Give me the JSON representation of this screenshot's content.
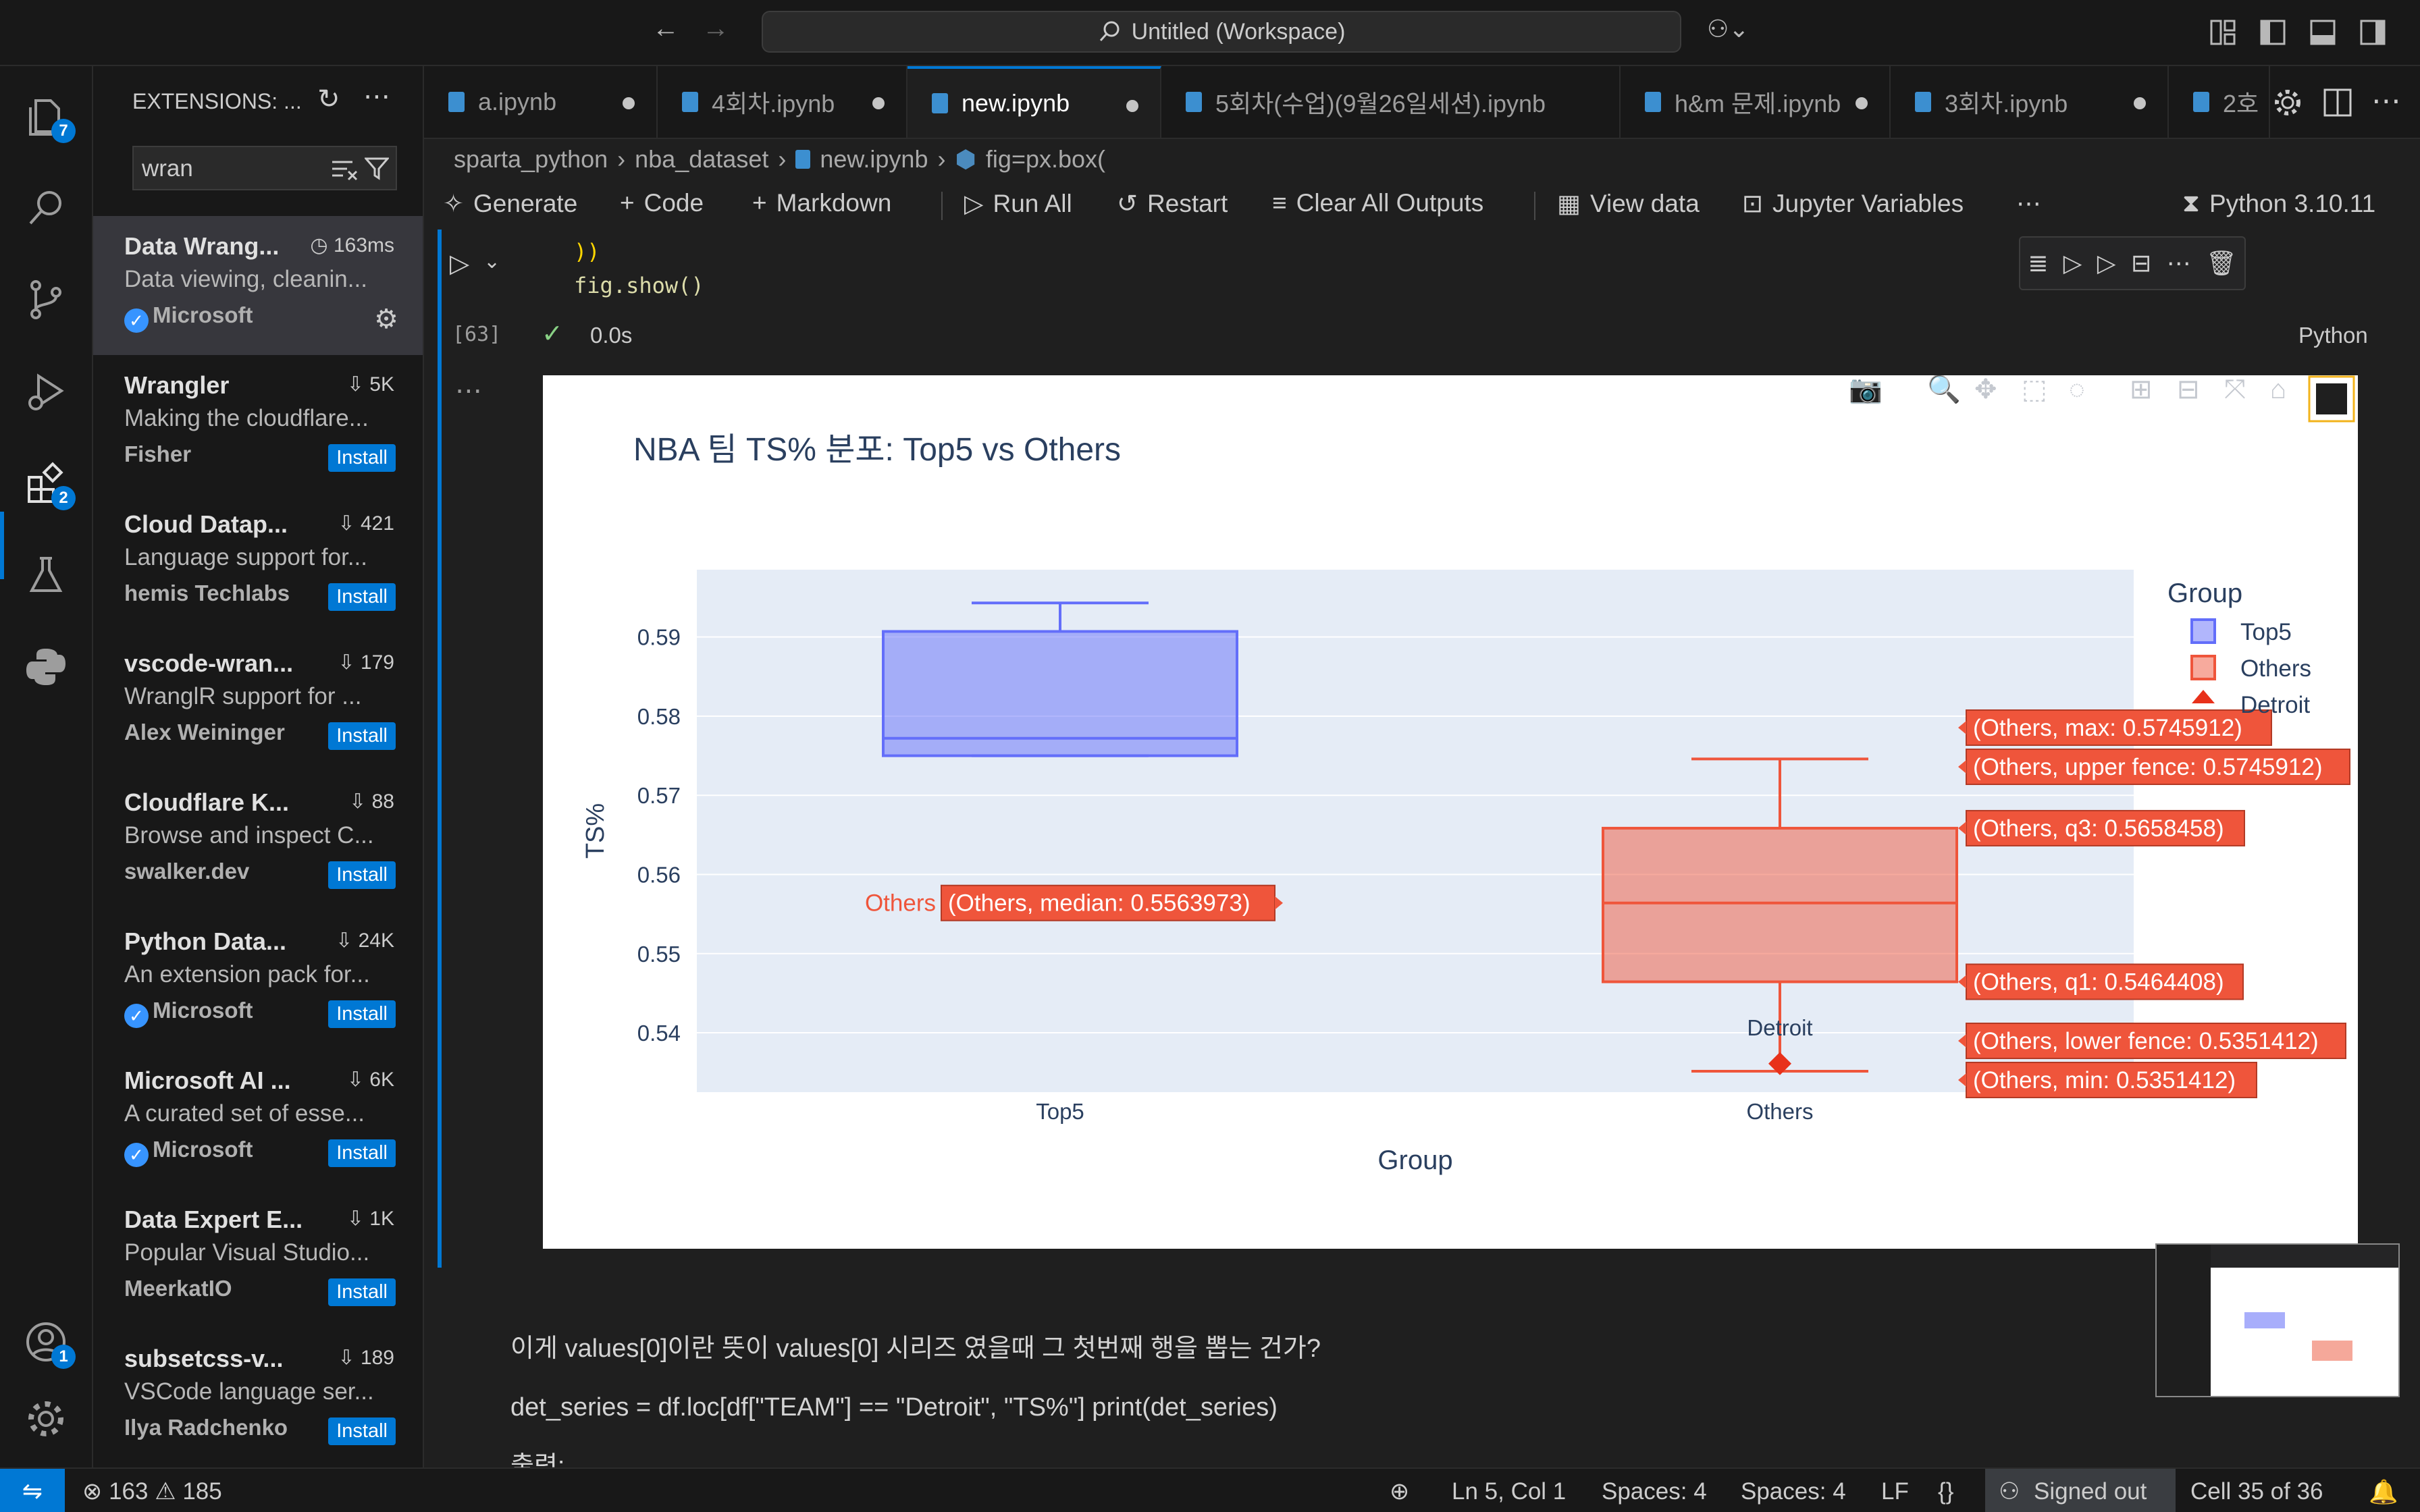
{
  "titlebar": {
    "search_text": "Untitled (Workspace)"
  },
  "activity_badges": {
    "explorer": "7",
    "extensions": "2",
    "accounts": "1"
  },
  "sidebar": {
    "header": "EXTENSIONS: ...",
    "search_value": "wran",
    "extensions": [
      {
        "name": "Data Wrang...",
        "meta": "163ms",
        "desc": "Data viewing, cleanin...",
        "publisher": "Microsoft",
        "verified": true,
        "action": ""
      },
      {
        "name": "Wrangler",
        "meta": "5K",
        "desc": "Making the cloudflare...",
        "publisher": "Fisher",
        "verified": false,
        "action": "Install"
      },
      {
        "name": "Cloud Datap...",
        "meta": "421",
        "desc": "Language support for...",
        "publisher": "hemis Techlabs",
        "verified": false,
        "action": "Install"
      },
      {
        "name": "vscode-wran...",
        "meta": "179",
        "desc": "WranglR support for ...",
        "publisher": "Alex Weininger",
        "verified": false,
        "action": "Install"
      },
      {
        "name": "Cloudflare K...",
        "meta": "88",
        "desc": "Browse and inspect C...",
        "publisher": "swalker.dev",
        "verified": false,
        "action": "Install"
      },
      {
        "name": "Python Data...",
        "meta": "24K",
        "desc": "An extension pack for...",
        "publisher": "Microsoft",
        "verified": true,
        "action": "Install"
      },
      {
        "name": "Microsoft AI ...",
        "meta": "6K",
        "desc": "A curated set of esse...",
        "publisher": "Microsoft",
        "verified": true,
        "action": "Install"
      },
      {
        "name": "Data Expert E...",
        "meta": "1K",
        "desc": "Popular Visual Studio...",
        "publisher": "MeerkatIO",
        "verified": false,
        "action": "Install"
      },
      {
        "name": "subsetcss-v...",
        "meta": "189",
        "desc": "VSCode language ser...",
        "publisher": "Ilya Radchenko",
        "verified": false,
        "action": "Install"
      }
    ]
  },
  "tabs": [
    {
      "label": "a.ipynb",
      "active": false,
      "dirty": true
    },
    {
      "label": "4회차.ipynb",
      "active": false,
      "dirty": true
    },
    {
      "label": "new.ipynb",
      "active": true,
      "dirty": true
    },
    {
      "label": "5회차(수업)(9월26일세션).ipynb",
      "active": false,
      "dirty": false
    },
    {
      "label": "h&m 문제.ipynb",
      "active": false,
      "dirty": true
    },
    {
      "label": "3회차.ipynb",
      "active": false,
      "dirty": true
    },
    {
      "label": "2호",
      "active": false,
      "dirty": false
    }
  ],
  "breadcrumb": [
    "sparta_python",
    "nba_dataset",
    "new.ipynb",
    "fig=px.box("
  ],
  "toolbar": {
    "generate": "Generate",
    "code": "Code",
    "markdown": "Markdown",
    "run_all": "Run All",
    "restart": "Restart",
    "clear": "Clear All Outputs",
    "view_data": "View data",
    "variables": "Jupyter Variables",
    "kernel": "Python 3.10.11"
  },
  "cell": {
    "code_line1": "))",
    "code_line2": "fig.show()",
    "exec_count": "[63]",
    "duration": "0.0s",
    "language": "Python"
  },
  "chart_data": {
    "type": "box",
    "title": "NBA 팀 TS% 분포: Top5 vs Others",
    "xlabel": "Group",
    "ylabel": "TS%",
    "categories": [
      "Top5",
      "Others"
    ],
    "yticks": [
      "0.59",
      "0.58",
      "0.57",
      "0.56",
      "0.55",
      "0.54"
    ],
    "ylim": [
      0.5325,
      0.5985
    ],
    "legend": {
      "title": "Group",
      "entries": [
        "Top5",
        "Others",
        "Detroit"
      ],
      "placement": "top-right"
    },
    "series": [
      {
        "name": "Top5",
        "color": "#636efa",
        "min": 0.575,
        "q1": 0.575,
        "median": 0.5772,
        "q3": 0.5907,
        "max": 0.5943
      },
      {
        "name": "Others",
        "color": "#ef553b",
        "min": 0.5351412,
        "q1": 0.5464408,
        "median": 0.5563973,
        "q3": 0.5658458,
        "max": 0.5745912
      }
    ],
    "points": [
      {
        "name": "Detroit",
        "category": "Others",
        "y": 0.5361,
        "color": "#e8311b"
      }
    ],
    "hover_labels": {
      "median_prefix": "Others",
      "median": "(Others, median: 0.5563973)",
      "max": "(Others, max: 0.5745912)",
      "upper_fence": "(Others, upper fence: 0.5745912)",
      "q3": "(Others, q3: 0.5658458)",
      "q1": "(Others, q1: 0.5464408)",
      "lower_fence": "(Others, lower fence: 0.5351412)",
      "min": "(Others, min: 0.5351412)"
    }
  },
  "markdown": {
    "line1": "이게 values[0]이란 뜻이 values[0] 시리즈 였을때 그 첫번째 행을 뽑는 건가?",
    "line2": "det_series = df.loc[df[\"TEAM\"] == \"Detroit\", \"TS%\"] print(det_series)",
    "line3": "출력:"
  },
  "statusbar": {
    "errors": "163",
    "warnings": "185",
    "position": "Ln 5, Col 1",
    "spaces1": "Spaces: 4",
    "spaces2": "Spaces: 4",
    "eol": "LF",
    "account": "Signed out",
    "cell": "Cell 35 of 36"
  }
}
